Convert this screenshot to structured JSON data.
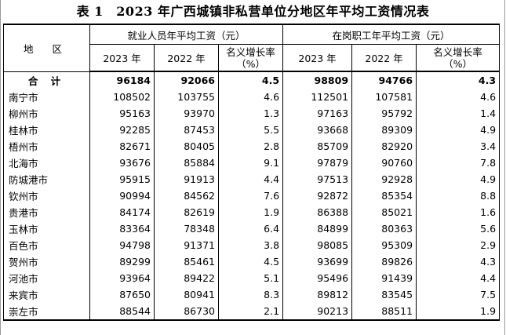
{
  "title": "表 1　2023 年广西城镇非私营单位分地区年平均工资情况表",
  "headers": {
    "region": "地 区",
    "group1": "就业人员年平均工资（元）",
    "group2": "在岗职工年平均工资（元）",
    "year2023": "2023 年",
    "year2022": "2022 年",
    "rate_line1": "名义增长率",
    "rate_line2": "（%）"
  },
  "rows": [
    {
      "region": "合 计",
      "e2023": "96184",
      "e2022": "92066",
      "erate": "4.5",
      "p2023": "98809",
      "p2022": "94766",
      "prate": "4.3"
    },
    {
      "region": "南宁市",
      "e2023": "108502",
      "e2022": "103755",
      "erate": "4.6",
      "p2023": "112501",
      "p2022": "107581",
      "prate": "4.6"
    },
    {
      "region": "柳州市",
      "e2023": "95163",
      "e2022": "93970",
      "erate": "1.3",
      "p2023": "97163",
      "p2022": "95792",
      "prate": "1.4"
    },
    {
      "region": "桂林市",
      "e2023": "92285",
      "e2022": "87453",
      "erate": "5.5",
      "p2023": "93668",
      "p2022": "89309",
      "prate": "4.9"
    },
    {
      "region": "梧州市",
      "e2023": "82671",
      "e2022": "80405",
      "erate": "2.8",
      "p2023": "85709",
      "p2022": "82920",
      "prate": "3.4"
    },
    {
      "region": "北海市",
      "e2023": "93676",
      "e2022": "85884",
      "erate": "9.1",
      "p2023": "97879",
      "p2022": "90760",
      "prate": "7.8"
    },
    {
      "region": "防城港市",
      "e2023": "95915",
      "e2022": "91913",
      "erate": "4.4",
      "p2023": "97513",
      "p2022": "92928",
      "prate": "4.9"
    },
    {
      "region": "钦州市",
      "e2023": "90994",
      "e2022": "84562",
      "erate": "7.6",
      "p2023": "92872",
      "p2022": "85354",
      "prate": "8.8"
    },
    {
      "region": "贵港市",
      "e2023": "84174",
      "e2022": "82619",
      "erate": "1.9",
      "p2023": "86388",
      "p2022": "85021",
      "prate": "1.6"
    },
    {
      "region": "玉林市",
      "e2023": "83364",
      "e2022": "78348",
      "erate": "6.4",
      "p2023": "84899",
      "p2022": "80363",
      "prate": "5.6"
    },
    {
      "region": "百色市",
      "e2023": "94798",
      "e2022": "91371",
      "erate": "3.8",
      "p2023": "98085",
      "p2022": "95309",
      "prate": "2.9"
    },
    {
      "region": "贺州市",
      "e2023": "89299",
      "e2022": "85461",
      "erate": "4.5",
      "p2023": "93699",
      "p2022": "89826",
      "prate": "4.3"
    },
    {
      "region": "河池市",
      "e2023": "93964",
      "e2022": "89422",
      "erate": "5.1",
      "p2023": "95496",
      "p2022": "91439",
      "prate": "4.4"
    },
    {
      "region": "来宾市",
      "e2023": "87650",
      "e2022": "80941",
      "erate": "8.3",
      "p2023": "89812",
      "p2022": "83545",
      "prate": "7.5"
    },
    {
      "region": "崇左市",
      "e2023": "88544",
      "e2022": "86730",
      "erate": "2.1",
      "p2023": "90213",
      "p2022": "88511",
      "prate": "1.9"
    }
  ]
}
